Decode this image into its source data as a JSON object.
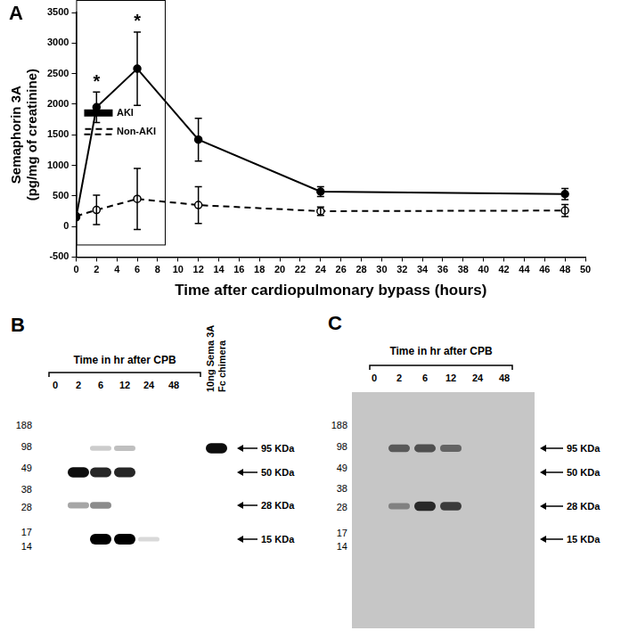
{
  "chart_data": {
    "type": "line",
    "panel_label": "A",
    "x_label": "Time after cardiopulmonary bypass (hours)",
    "y_label": [
      "Semaphorin 3A",
      "(pg/mg of creatinine)"
    ],
    "x": [
      0,
      2,
      6,
      12,
      24,
      48
    ],
    "series": [
      {
        "name": "AKI",
        "color": "#000000",
        "marker": "circle",
        "line_style": "solid",
        "values": [
          150,
          1950,
          2580,
          1420,
          570,
          530
        ],
        "errors": [
          0,
          250,
          600,
          350,
          80,
          90
        ]
      },
      {
        "name": "Non-AKI",
        "color": "#000000",
        "marker": "circle-open",
        "line_style": "dashed",
        "values": [
          170,
          270,
          450,
          350,
          250,
          260
        ],
        "errors": [
          0,
          240,
          500,
          300,
          70,
          100
        ]
      }
    ],
    "xlim": [
      0,
      50
    ],
    "xticks": [
      0,
      2,
      4,
      6,
      8,
      10,
      12,
      14,
      16,
      18,
      20,
      22,
      24,
      26,
      28,
      30,
      32,
      34,
      36,
      38,
      40,
      42,
      44,
      46,
      48,
      50
    ],
    "ylim": [
      -500,
      3500
    ],
    "yticks": [
      -500,
      0,
      500,
      1000,
      1500,
      2000,
      2500,
      3000,
      3500
    ],
    "grid": false,
    "legend": "top",
    "annotations": [
      {
        "x": 2,
        "y": 2350,
        "text": "*"
      },
      {
        "x": 6,
        "y": 3350,
        "text": "*"
      }
    ]
  },
  "blots": [
    {
      "label": "B",
      "header": "Time in hr after CPB",
      "lanes": [
        "0",
        "2",
        "6",
        "12",
        "24",
        "48"
      ],
      "extra_lane": "10ng Sema 3A Fc chimera",
      "ladder": [
        188,
        98,
        49,
        38,
        28,
        17,
        14
      ],
      "markers": [
        "95 KDa",
        "50 KDa",
        "28 KDa",
        "15 KDa"
      ],
      "bands": [
        {
          "lane": "2",
          "at": "50 KDa",
          "intensity": 0.95
        },
        {
          "lane": "2",
          "at": "28 KDa",
          "intensity": 0.35
        },
        {
          "lane": "6",
          "at": "95 KDa",
          "intensity": 0.2
        },
        {
          "lane": "6",
          "at": "50 KDa",
          "intensity": 0.85
        },
        {
          "lane": "6",
          "at": "28 KDa",
          "intensity": 0.45
        },
        {
          "lane": "6",
          "at": "15 KDa",
          "intensity": 1
        },
        {
          "lane": "12",
          "at": "95 KDa",
          "intensity": 0.25
        },
        {
          "lane": "12",
          "at": "50 KDa",
          "intensity": 0.85
        },
        {
          "lane": "12",
          "at": "15 KDa",
          "intensity": 1
        },
        {
          "lane": "24",
          "at": "15 KDa",
          "intensity": 0.15
        },
        {
          "lane": "10ng Sema 3A Fc chimera",
          "at": "95 KDa",
          "intensity": 0.95
        }
      ]
    },
    {
      "label": "C",
      "header": "Time in hr after CPB",
      "lanes": [
        "0",
        "2",
        "6",
        "12",
        "24",
        "48"
      ],
      "ladder": [
        188,
        98,
        49,
        38,
        28,
        17,
        14
      ],
      "markers": [
        "95 KDa",
        "50 KDa",
        "28 KDa",
        "15 KDa"
      ],
      "bands": [
        {
          "lane": "2",
          "at": "95 KDa",
          "intensity": 0.55
        },
        {
          "lane": "2",
          "at": "28 KDa",
          "intensity": 0.35
        },
        {
          "lane": "6",
          "at": "95 KDa",
          "intensity": 0.6
        },
        {
          "lane": "6",
          "at": "28 KDa",
          "intensity": 0.8
        },
        {
          "lane": "12",
          "at": "95 KDa",
          "intensity": 0.5
        },
        {
          "lane": "12",
          "at": "28 KDa",
          "intensity": 0.7
        }
      ]
    }
  ]
}
